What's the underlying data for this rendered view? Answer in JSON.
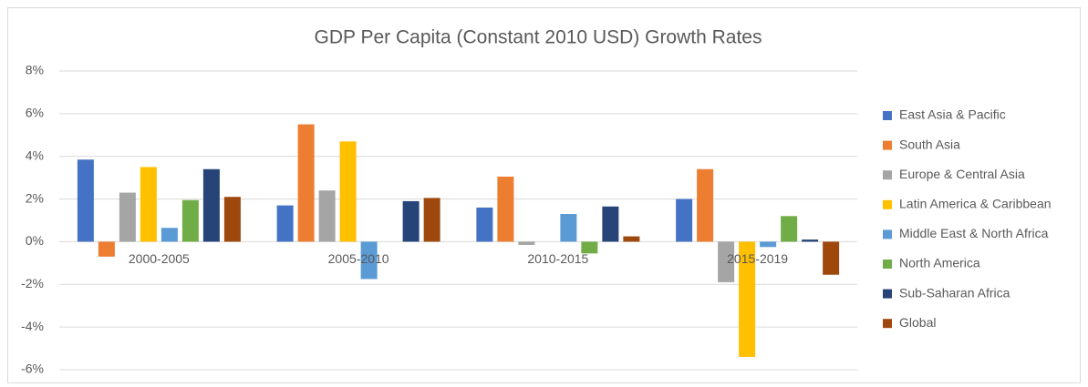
{
  "chart_data": {
    "type": "bar",
    "title": "GDP Per Capita (Constant 2010 USD) Growth Rates",
    "categories": [
      "2000-2005",
      "2005-2010",
      "2010-2015",
      "2015-2019"
    ],
    "series": [
      {
        "name": "East Asia & Pacific",
        "color": "#4472c4",
        "values": [
          3.85,
          1.7,
          1.6,
          2.0
        ]
      },
      {
        "name": "South Asia",
        "color": "#ed7d31",
        "values": [
          -0.7,
          5.5,
          3.05,
          3.4
        ]
      },
      {
        "name": "Europe & Central Asia",
        "color": "#a5a5a5",
        "values": [
          2.3,
          2.4,
          -0.15,
          -1.9
        ]
      },
      {
        "name": "Latin America & Caribbean",
        "color": "#ffc000",
        "values": [
          3.5,
          4.7,
          0,
          -5.4
        ]
      },
      {
        "name": "Middle East & North Africa",
        "color": "#5b9bd5",
        "values": [
          0.65,
          -1.75,
          1.3,
          -0.25
        ]
      },
      {
        "name": "North America",
        "color": "#70ad47",
        "values": [
          1.95,
          0,
          -0.55,
          1.2
        ]
      },
      {
        "name": "Sub-Saharan Africa",
        "color": "#264478",
        "values": [
          3.4,
          1.9,
          1.65,
          0.1
        ]
      },
      {
        "name": "Global",
        "color": "#9e480e",
        "values": [
          2.1,
          2.05,
          0.25,
          -1.55
        ]
      }
    ],
    "ylim": [
      -6,
      8
    ],
    "yticks": [
      {
        "value": -6,
        "label": "-6%"
      },
      {
        "value": -4,
        "label": "-4%"
      },
      {
        "value": -2,
        "label": "-2%"
      },
      {
        "value": 0,
        "label": "0%"
      },
      {
        "value": 2,
        "label": "2%"
      },
      {
        "value": 4,
        "label": "4%"
      },
      {
        "value": 6,
        "label": "6%"
      },
      {
        "value": 8,
        "label": "8%"
      }
    ],
    "grid": true,
    "legend": "right"
  }
}
